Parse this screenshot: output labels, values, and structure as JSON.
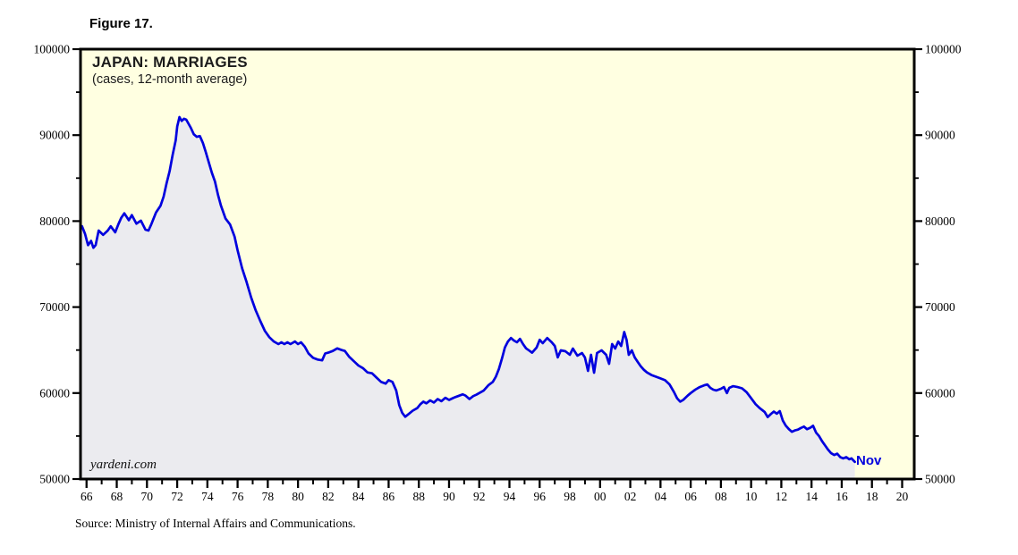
{
  "figure_label": "Figure 17.",
  "watermark": "yardeni.com",
  "source_note": "Source: Ministry of Internal Affairs and Communications.",
  "colors": {
    "line": "#0000DE",
    "area_fill": "#EBEBEF",
    "plot_background": "#FFFFE1",
    "frame": "#000000",
    "text": "#000000",
    "end_label_color": "#0000DE"
  },
  "chart_data": {
    "type": "line",
    "title": "JAPAN: MARRIAGES",
    "subtitle": "(cases, 12-month average)",
    "end_label": "Nov",
    "grid": false,
    "legend": false,
    "x_axis": {
      "range_years": [
        1965.6,
        2020.8
      ],
      "major_tick_years": [
        1966,
        1968,
        1970,
        1972,
        1974,
        1976,
        1978,
        1980,
        1982,
        1984,
        1986,
        1988,
        1990,
        1992,
        1994,
        1996,
        1998,
        2000,
        2002,
        2004,
        2006,
        2008,
        2010,
        2012,
        2014,
        2016,
        2018,
        2020
      ],
      "major_tick_labels": [
        "66",
        "68",
        "70",
        "72",
        "74",
        "76",
        "78",
        "80",
        "82",
        "84",
        "86",
        "88",
        "90",
        "92",
        "94",
        "96",
        "98",
        "00",
        "02",
        "04",
        "06",
        "08",
        "10",
        "12",
        "14",
        "16",
        "18",
        "20"
      ],
      "minor_tick_step_years": 1
    },
    "y_axis": {
      "range": [
        50000,
        100000
      ],
      "tick_values": [
        100000,
        90000,
        80000,
        70000,
        60000,
        50000
      ],
      "tick_labels": [
        "100000",
        "90000",
        "80000",
        "70000",
        "60000",
        "50000"
      ],
      "minor_tick_step": 5000,
      "sides": [
        "left",
        "right"
      ]
    },
    "series": [
      {
        "name": "Japan marriages, cases, 12-month average",
        "last_point": "Nov 2016",
        "points": [
          [
            1965.7,
            79400
          ],
          [
            1965.9,
            78500
          ],
          [
            1966.1,
            77200
          ],
          [
            1966.3,
            77700
          ],
          [
            1966.45,
            76900
          ],
          [
            1966.6,
            77200
          ],
          [
            1966.8,
            78900
          ],
          [
            1967.1,
            78400
          ],
          [
            1967.4,
            78900
          ],
          [
            1967.6,
            79400
          ],
          [
            1967.9,
            78700
          ],
          [
            1968.1,
            79600
          ],
          [
            1968.3,
            80400
          ],
          [
            1968.5,
            80900
          ],
          [
            1968.8,
            80100
          ],
          [
            1969.0,
            80700
          ],
          [
            1969.3,
            79700
          ],
          [
            1969.6,
            80050
          ],
          [
            1969.9,
            79000
          ],
          [
            1970.1,
            78900
          ],
          [
            1970.3,
            79700
          ],
          [
            1970.6,
            81000
          ],
          [
            1970.9,
            81800
          ],
          [
            1971.1,
            82850
          ],
          [
            1971.3,
            84400
          ],
          [
            1971.5,
            85800
          ],
          [
            1971.7,
            87700
          ],
          [
            1971.9,
            89400
          ],
          [
            1972.0,
            91000
          ],
          [
            1972.15,
            92100
          ],
          [
            1972.3,
            91650
          ],
          [
            1972.45,
            91900
          ],
          [
            1972.6,
            91800
          ],
          [
            1972.9,
            90850
          ],
          [
            1973.1,
            90100
          ],
          [
            1973.3,
            89800
          ],
          [
            1973.5,
            89900
          ],
          [
            1973.7,
            89100
          ],
          [
            1973.9,
            88000
          ],
          [
            1974.1,
            86800
          ],
          [
            1974.3,
            85600
          ],
          [
            1974.5,
            84600
          ],
          [
            1974.7,
            83100
          ],
          [
            1974.9,
            81800
          ],
          [
            1975.2,
            80300
          ],
          [
            1975.5,
            79600
          ],
          [
            1975.8,
            78200
          ],
          [
            1976.0,
            76600
          ],
          [
            1976.3,
            74500
          ],
          [
            1976.6,
            72900
          ],
          [
            1976.9,
            71100
          ],
          [
            1977.2,
            69600
          ],
          [
            1977.5,
            68400
          ],
          [
            1977.8,
            67250
          ],
          [
            1978.1,
            66500
          ],
          [
            1978.4,
            66000
          ],
          [
            1978.7,
            65700
          ],
          [
            1978.9,
            65900
          ],
          [
            1979.1,
            65700
          ],
          [
            1979.3,
            65900
          ],
          [
            1979.5,
            65700
          ],
          [
            1979.8,
            66000
          ],
          [
            1980.0,
            65700
          ],
          [
            1980.2,
            65900
          ],
          [
            1980.45,
            65400
          ],
          [
            1980.7,
            64600
          ],
          [
            1981.0,
            64100
          ],
          [
            1981.3,
            63900
          ],
          [
            1981.6,
            63800
          ],
          [
            1981.8,
            64600
          ],
          [
            1982.0,
            64700
          ],
          [
            1982.3,
            64900
          ],
          [
            1982.6,
            65200
          ],
          [
            1982.9,
            65000
          ],
          [
            1983.1,
            64900
          ],
          [
            1983.4,
            64200
          ],
          [
            1983.7,
            63700
          ],
          [
            1984.0,
            63200
          ],
          [
            1984.3,
            62900
          ],
          [
            1984.6,
            62400
          ],
          [
            1984.9,
            62300
          ],
          [
            1985.2,
            61800
          ],
          [
            1985.5,
            61300
          ],
          [
            1985.8,
            61100
          ],
          [
            1986.0,
            61500
          ],
          [
            1986.25,
            61300
          ],
          [
            1986.5,
            60300
          ],
          [
            1986.7,
            58600
          ],
          [
            1986.9,
            57700
          ],
          [
            1987.1,
            57250
          ],
          [
            1987.35,
            57600
          ],
          [
            1987.6,
            57950
          ],
          [
            1987.9,
            58250
          ],
          [
            1988.1,
            58700
          ],
          [
            1988.3,
            59000
          ],
          [
            1988.5,
            58800
          ],
          [
            1988.75,
            59150
          ],
          [
            1989.0,
            58900
          ],
          [
            1989.25,
            59300
          ],
          [
            1989.5,
            59050
          ],
          [
            1989.75,
            59450
          ],
          [
            1990.0,
            59200
          ],
          [
            1990.3,
            59450
          ],
          [
            1990.6,
            59650
          ],
          [
            1990.9,
            59850
          ],
          [
            1991.1,
            59700
          ],
          [
            1991.35,
            59300
          ],
          [
            1991.6,
            59650
          ],
          [
            1991.8,
            59800
          ],
          [
            1992.0,
            60000
          ],
          [
            1992.3,
            60300
          ],
          [
            1992.6,
            60900
          ],
          [
            1992.9,
            61300
          ],
          [
            1993.1,
            61900
          ],
          [
            1993.3,
            62800
          ],
          [
            1993.5,
            64000
          ],
          [
            1993.7,
            65300
          ],
          [
            1993.9,
            66000
          ],
          [
            1994.1,
            66400
          ],
          [
            1994.3,
            66100
          ],
          [
            1994.5,
            65900
          ],
          [
            1994.7,
            66300
          ],
          [
            1994.9,
            65700
          ],
          [
            1995.1,
            65200
          ],
          [
            1995.3,
            64950
          ],
          [
            1995.5,
            64700
          ],
          [
            1995.8,
            65300
          ],
          [
            1996.0,
            66200
          ],
          [
            1996.2,
            65800
          ],
          [
            1996.5,
            66400
          ],
          [
            1996.8,
            65900
          ],
          [
            1997.0,
            65480
          ],
          [
            1997.2,
            64150
          ],
          [
            1997.4,
            64970
          ],
          [
            1997.7,
            64870
          ],
          [
            1998.0,
            64450
          ],
          [
            1998.2,
            65180
          ],
          [
            1998.5,
            64350
          ],
          [
            1998.8,
            64660
          ],
          [
            1999.0,
            64140
          ],
          [
            1999.2,
            62580
          ],
          [
            1999.4,
            64450
          ],
          [
            1999.6,
            62370
          ],
          [
            1999.8,
            64660
          ],
          [
            2000.1,
            64970
          ],
          [
            2000.4,
            64450
          ],
          [
            2000.6,
            63400
          ],
          [
            2000.8,
            65700
          ],
          [
            2001.0,
            65180
          ],
          [
            2001.2,
            66000
          ],
          [
            2001.4,
            65480
          ],
          [
            2001.6,
            67100
          ],
          [
            2001.75,
            66210
          ],
          [
            2001.9,
            64450
          ],
          [
            2002.1,
            64970
          ],
          [
            2002.3,
            64140
          ],
          [
            2002.5,
            63610
          ],
          [
            2002.7,
            63100
          ],
          [
            2002.9,
            62700
          ],
          [
            2003.1,
            62400
          ],
          [
            2003.4,
            62100
          ],
          [
            2003.7,
            61900
          ],
          [
            2004.0,
            61700
          ],
          [
            2004.3,
            61500
          ],
          [
            2004.6,
            61000
          ],
          [
            2004.9,
            60100
          ],
          [
            2005.1,
            59400
          ],
          [
            2005.3,
            59000
          ],
          [
            2005.5,
            59200
          ],
          [
            2005.8,
            59700
          ],
          [
            2006.0,
            60000
          ],
          [
            2006.3,
            60400
          ],
          [
            2006.6,
            60700
          ],
          [
            2006.9,
            60900
          ],
          [
            2007.1,
            61000
          ],
          [
            2007.3,
            60600
          ],
          [
            2007.5,
            60400
          ],
          [
            2007.7,
            60300
          ],
          [
            2008.0,
            60500
          ],
          [
            2008.2,
            60700
          ],
          [
            2008.4,
            60000
          ],
          [
            2008.55,
            60600
          ],
          [
            2008.8,
            60800
          ],
          [
            2009.1,
            60700
          ],
          [
            2009.4,
            60550
          ],
          [
            2009.7,
            60100
          ],
          [
            2010.0,
            59400
          ],
          [
            2010.3,
            58700
          ],
          [
            2010.6,
            58200
          ],
          [
            2010.9,
            57800
          ],
          [
            2011.1,
            57200
          ],
          [
            2011.3,
            57550
          ],
          [
            2011.5,
            57850
          ],
          [
            2011.7,
            57600
          ],
          [
            2011.9,
            57900
          ],
          [
            2012.1,
            56800
          ],
          [
            2012.3,
            56200
          ],
          [
            2012.5,
            55800
          ],
          [
            2012.7,
            55500
          ],
          [
            2012.9,
            55650
          ],
          [
            2013.1,
            55750
          ],
          [
            2013.3,
            55950
          ],
          [
            2013.5,
            56100
          ],
          [
            2013.7,
            55800
          ],
          [
            2013.9,
            55950
          ],
          [
            2014.1,
            56200
          ],
          [
            2014.3,
            55400
          ],
          [
            2014.5,
            55000
          ],
          [
            2014.7,
            54400
          ],
          [
            2014.9,
            53900
          ],
          [
            2015.1,
            53400
          ],
          [
            2015.3,
            53000
          ],
          [
            2015.5,
            52800
          ],
          [
            2015.7,
            52950
          ],
          [
            2015.9,
            52550
          ],
          [
            2016.1,
            52400
          ],
          [
            2016.3,
            52550
          ],
          [
            2016.5,
            52300
          ],
          [
            2016.65,
            52400
          ],
          [
            2016.87,
            52000
          ]
        ]
      }
    ]
  }
}
